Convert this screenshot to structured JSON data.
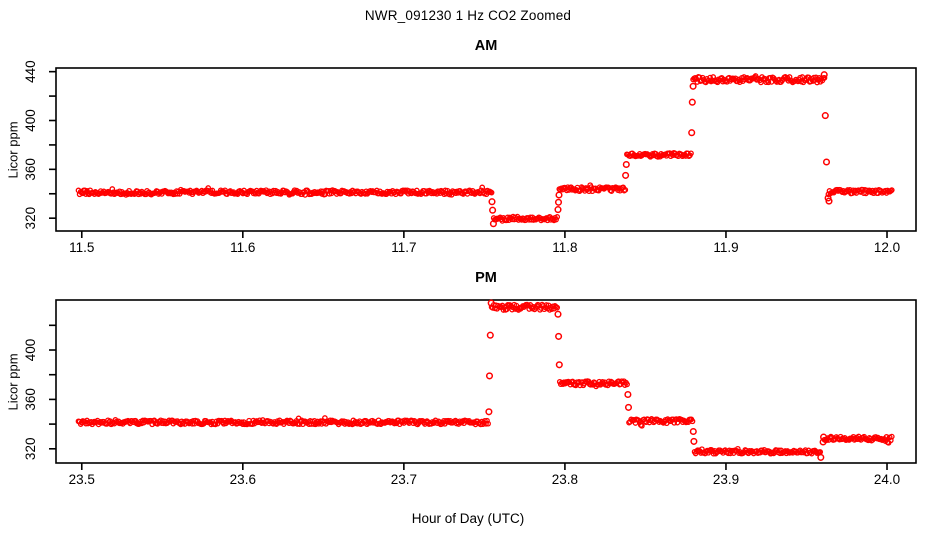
{
  "title": "NWR_091230  1 Hz CO2 Zoomed",
  "xlabel": "Hour of Day (UTC)",
  "colors": {
    "points": "#FF0000",
    "axis": "#000000",
    "background": "#FFFFFF"
  },
  "chart_data": [
    {
      "type": "scatter",
      "title": "AM",
      "ylabel": "Licor ppm",
      "marker": "open-circle",
      "color": "#FF0000",
      "grid": false,
      "xlim": [
        11.484,
        12.018
      ],
      "ylim": [
        309.5,
        443.0
      ],
      "x_ticks": [
        11.5,
        11.6,
        11.7,
        11.8,
        11.9,
        12.0
      ],
      "x_tick_labels": [
        "11.5",
        "11.6",
        "11.7",
        "11.8",
        "11.9",
        "12.0"
      ],
      "y_ticks": [
        320,
        340,
        360,
        380,
        400,
        420,
        440
      ],
      "y_tick_labels": [
        "320",
        "",
        "360",
        "",
        "400",
        "",
        "440"
      ],
      "segments": [
        {
          "x0": 11.498,
          "x1": 11.7545,
          "y": 341.2,
          "noise": 1.7
        },
        {
          "x0": 11.7558,
          "x1": 11.7952,
          "y": 319.8,
          "noise": 1.7
        },
        {
          "x0": 11.7965,
          "x1": 11.8375,
          "y": 343.8,
          "noise": 1.7
        },
        {
          "x0": 11.8385,
          "x1": 11.8783,
          "y": 371.8,
          "noise": 1.7
        },
        {
          "x0": 11.8796,
          "x1": 11.9612,
          "y": 433.4,
          "noise": 2.3
        },
        {
          "x0": 11.9636,
          "x1": 12.003,
          "y": 341.8,
          "noise": 1.6
        }
      ],
      "points": [
        [
          11.7547,
          333.5
        ],
        [
          11.7551,
          326.5
        ],
        [
          11.7556,
          315.5
        ],
        [
          11.7957,
          327.0
        ],
        [
          11.796,
          333.0
        ],
        [
          11.7963,
          339.0
        ],
        [
          11.8377,
          355.0
        ],
        [
          11.8381,
          364.0
        ],
        [
          11.8787,
          390.0
        ],
        [
          11.8791,
          415.0
        ],
        [
          11.8796,
          428.0
        ],
        [
          11.961,
          437.5
        ],
        [
          11.9617,
          404.0
        ],
        [
          11.9624,
          366.0
        ],
        [
          11.9634,
          336.5
        ],
        [
          11.964,
          334.0
        ]
      ]
    },
    {
      "type": "scatter",
      "title": "PM",
      "ylabel": "Licor ppm",
      "marker": "open-circle",
      "color": "#FF0000",
      "grid": false,
      "xlim": [
        23.484,
        24.018
      ],
      "ylim": [
        308.5,
        440.5
      ],
      "x_ticks": [
        23.5,
        23.6,
        23.7,
        23.8,
        23.9,
        24.0
      ],
      "x_tick_labels": [
        "23.5",
        "23.6",
        "23.7",
        "23.8",
        "23.9",
        "24.0"
      ],
      "y_ticks": [
        320,
        340,
        360,
        380,
        400,
        420
      ],
      "y_tick_labels": [
        "320",
        "",
        "360",
        "",
        "400",
        ""
      ],
      "segments": [
        {
          "x0": 23.498,
          "x1": 23.7523,
          "y": 341.4,
          "noise": 1.7
        },
        {
          "x0": 23.7545,
          "x1": 23.7952,
          "y": 434.6,
          "noise": 2.2
        },
        {
          "x0": 23.7968,
          "x1": 23.8386,
          "y": 373.0,
          "noise": 1.8
        },
        {
          "x0": 23.8398,
          "x1": 23.8792,
          "y": 342.6,
          "noise": 1.7
        },
        {
          "x0": 23.8805,
          "x1": 23.9585,
          "y": 317.6,
          "noise": 1.6
        },
        {
          "x0": 23.9612,
          "x1": 24.003,
          "y": 328.4,
          "noise": 1.6
        }
      ],
      "points": [
        [
          23.7528,
          350.0
        ],
        [
          23.7532,
          379.0
        ],
        [
          23.7537,
          412.0
        ],
        [
          23.7542,
          438.0
        ],
        [
          23.7957,
          429.0
        ],
        [
          23.7961,
          411.0
        ],
        [
          23.7965,
          388.0
        ],
        [
          23.8391,
          364.0
        ],
        [
          23.8395,
          353.5
        ],
        [
          23.8797,
          334.0
        ],
        [
          23.8801,
          326.0
        ],
        [
          23.9589,
          313.0
        ],
        [
          23.9603,
          325.5
        ],
        [
          23.9606,
          329.5
        ]
      ]
    }
  ]
}
